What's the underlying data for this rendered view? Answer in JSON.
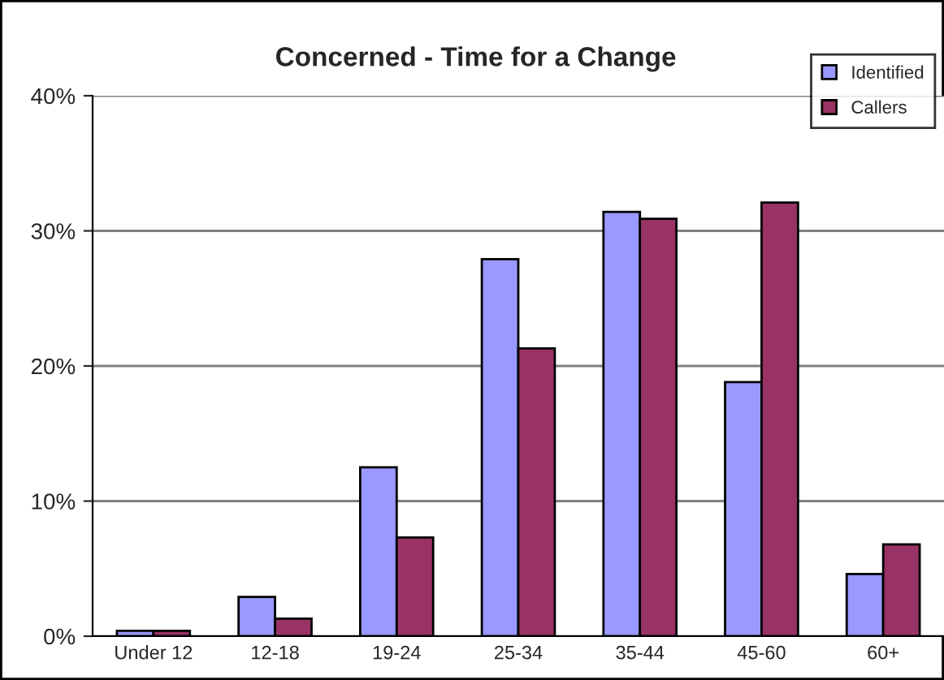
{
  "chart_data": {
    "type": "bar",
    "title": "Concerned - Time for a Change",
    "categories": [
      "Under 12",
      "12-18",
      "19-24",
      "25-34",
      "35-44",
      "45-60",
      "60+"
    ],
    "series": [
      {
        "name": "Identified",
        "color": "#9999ff",
        "values": [
          0.4,
          2.9,
          12.5,
          27.9,
          31.4,
          18.8,
          4.6
        ]
      },
      {
        "name": "Callers",
        "color": "#993366",
        "values": [
          0.4,
          1.3,
          7.3,
          21.3,
          30.9,
          32.1,
          6.8
        ]
      }
    ],
    "ylim": [
      0,
      40
    ],
    "yticks": [
      {
        "value": 0,
        "label": "0%"
      },
      {
        "value": 10,
        "label": "10%"
      },
      {
        "value": 20,
        "label": "20%"
      },
      {
        "value": 30,
        "label": "30%"
      },
      {
        "value": 40,
        "label": "40%"
      }
    ],
    "grid": "y",
    "legend": "top right"
  }
}
